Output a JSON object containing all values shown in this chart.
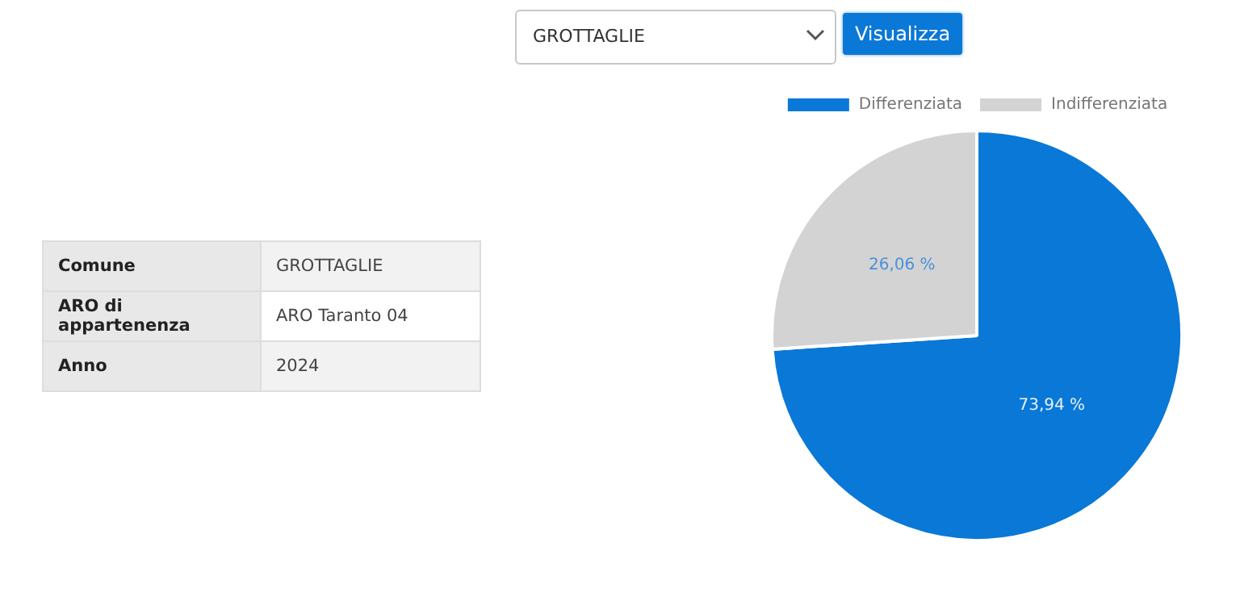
{
  "chart_data": {
    "type": "pie",
    "categories": [
      "Differenziata",
      "Indifferenziata"
    ],
    "values": [
      73.94,
      26.06
    ],
    "colors": [
      "#0a78d6",
      "#d3d3d3"
    ],
    "value_labels": [
      "73,94 %",
      "26,06 %"
    ],
    "legend": "top",
    "annotations": [
      "GROTTAGLIE",
      "Visualizza",
      "Comune",
      "GROTTAGLIE",
      "ARO di appartenenza",
      "ARO Taranto 04",
      "Anno",
      "2024"
    ]
  }
}
